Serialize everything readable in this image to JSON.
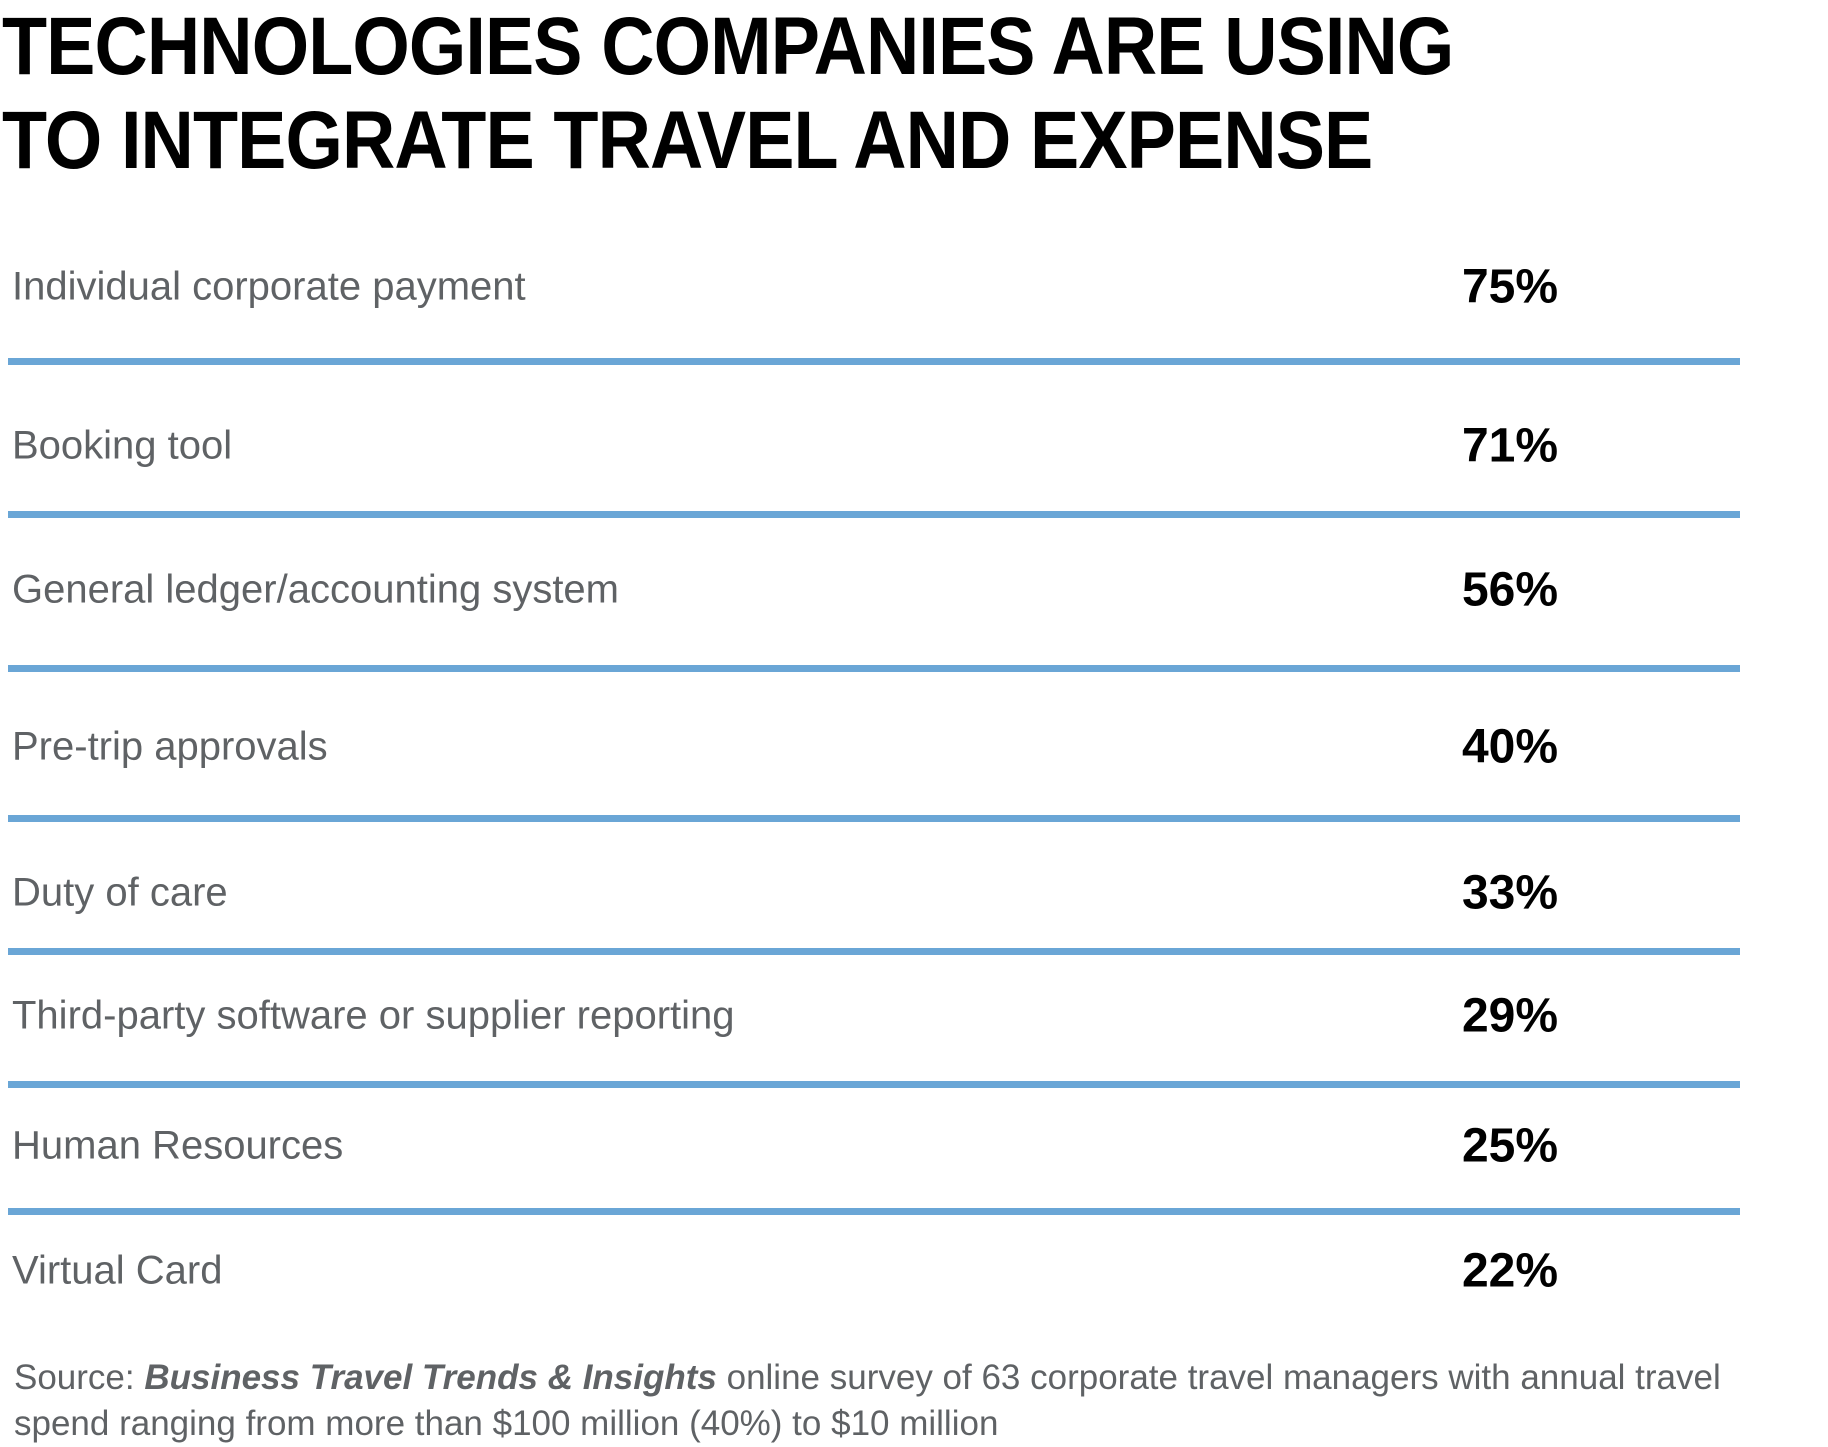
{
  "accent_color": "#6aa6d6",
  "chart_data": {
    "type": "table",
    "title": "TECHNOLOGIES COMPANIES ARE USING TO INTEGRATE TRAVEL AND EXPENSE",
    "title_lines": [
      "TECHNOLOGIES COMPANIES ARE USING",
      "TO INTEGRATE TRAVEL AND EXPENSE"
    ],
    "rows": [
      {
        "label": "Individual corporate payment",
        "value": 75,
        "display": "75%"
      },
      {
        "label": "Booking tool",
        "value": 71,
        "display": "71%"
      },
      {
        "label": "General ledger/accounting system",
        "value": 56,
        "display": "56%"
      },
      {
        "label": "Pre-trip approvals",
        "value": 40,
        "display": "40%"
      },
      {
        "label": "Duty of care",
        "value": 33,
        "display": "33%"
      },
      {
        "label": "Third-party software or supplier reporting",
        "value": 29,
        "display": "29%"
      },
      {
        "label": "Human Resources",
        "value": 25,
        "display": "25%"
      },
      {
        "label": "Virtual Card",
        "value": 22,
        "display": "22%"
      }
    ],
    "source": {
      "prefix": "Source: ",
      "publication": "Business Travel Trends & Insights",
      "text": " online survey of 63 corporate travel managers with annual travel spend ranging from more than $100 million (40%) to $10 million"
    }
  }
}
